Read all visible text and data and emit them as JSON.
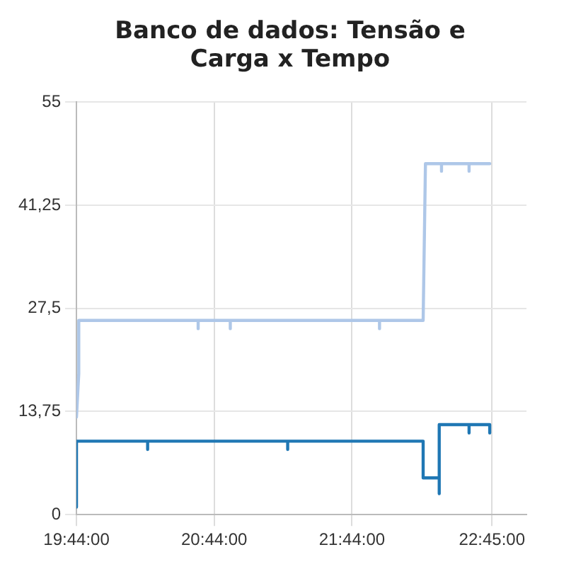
{
  "chart_data": {
    "type": "line",
    "title": "Banco de dados: Tensão e Carga x Tempo",
    "xlim": [
      19.7333,
      23.0
    ],
    "xticks": [
      {
        "value": 19.7333,
        "label": "19:44:00"
      },
      {
        "value": 20.7333,
        "label": "20:44:00"
      },
      {
        "value": 21.7333,
        "label": "21:44:00"
      },
      {
        "value": 22.75,
        "label": "22:45:00"
      }
    ],
    "ylim": [
      0,
      55
    ],
    "yticks": [
      0,
      {
        "value": 13.75,
        "label": "13,75"
      },
      {
        "value": 27.5,
        "label": "27,5"
      },
      {
        "value": 41.25,
        "label": "41,25"
      },
      55
    ],
    "grid": true,
    "legend": false,
    "marker": "none",
    "line_style": "solid",
    "series": [
      {
        "color": "#aec7e8",
        "x": [
          19.7333,
          19.75,
          19.75,
          20.6167,
          20.6167,
          20.6167,
          20.85,
          20.85,
          20.85,
          21.9333,
          21.9333,
          21.9333,
          22.25,
          22.2667,
          22.3833,
          22.3833,
          22.3833,
          22.5833,
          22.5833,
          22.5833,
          22.7333
        ],
        "values": [
          13,
          18.8,
          25.9,
          25.9,
          24.8,
          25.9,
          25.9,
          24.8,
          25.9,
          25.9,
          24.8,
          25.9,
          25.9,
          46.8,
          46.8,
          45.8,
          46.8,
          46.8,
          45.8,
          46.8,
          46.8
        ]
      },
      {
        "color": "#1f77b4",
        "x": [
          19.7333,
          19.7333,
          20.25,
          20.25,
          20.25,
          21.2667,
          21.2667,
          21.2667,
          22.25,
          22.25,
          22.3667,
          22.3667,
          22.3667,
          22.5833,
          22.5833,
          22.5833,
          22.7333,
          22.7333
        ],
        "values": [
          1.0,
          9.8,
          9.8,
          8.7,
          9.8,
          9.8,
          8.7,
          9.8,
          9.8,
          4.9,
          4.9,
          2.8,
          12.0,
          12.0,
          10.9,
          12.0,
          12.0,
          10.9
        ]
      }
    ]
  }
}
